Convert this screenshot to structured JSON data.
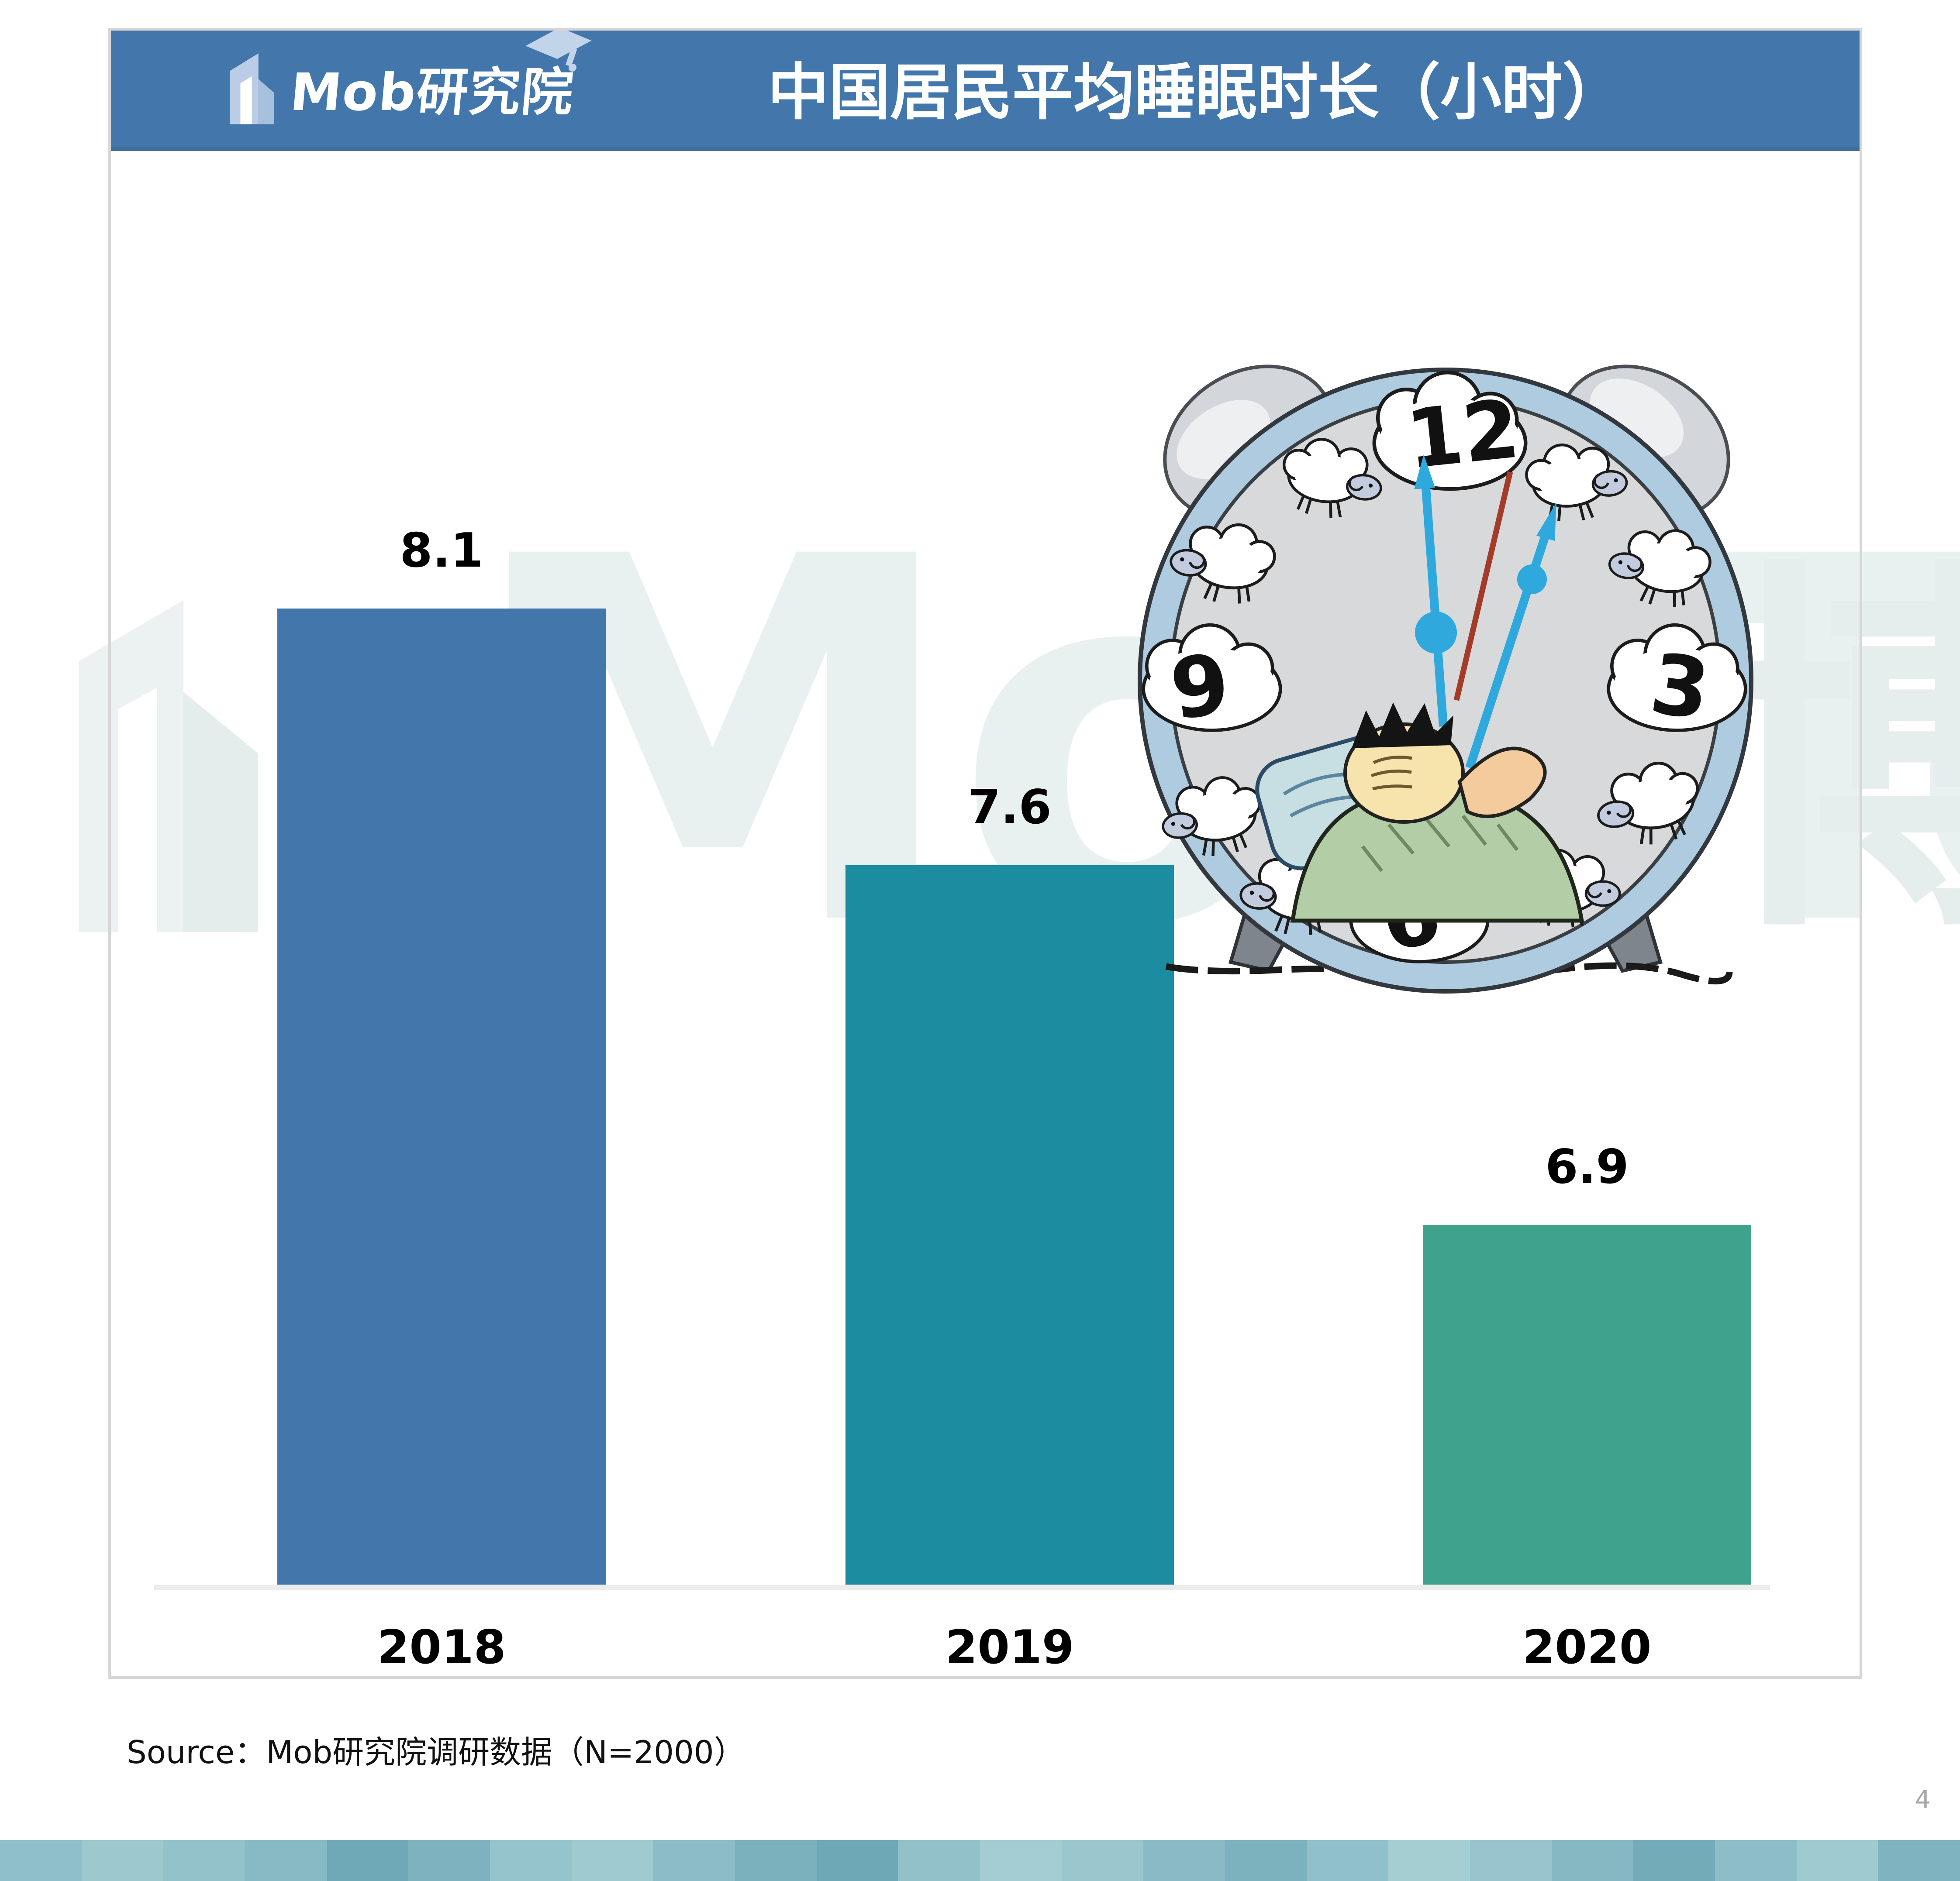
{
  "header": {
    "logo_text": "Mob研究院",
    "title": "中国居民平均睡眠时长（小时）",
    "bg_color": "#4377AC"
  },
  "chart_data": {
    "type": "bar",
    "title": "中国居民平均睡眠时长（小时）",
    "categories": [
      "2018",
      "2019",
      "2020"
    ],
    "values": [
      8.1,
      7.6,
      6.9
    ],
    "value_labels": [
      "8.1",
      "7.6",
      "6.9"
    ],
    "bar_colors": [
      "#4377AC",
      "#1C8CA1",
      "#3EA28D"
    ],
    "xlabel": "",
    "ylabel": "",
    "ylim": [
      6.2,
      8.6
    ],
    "grid": false,
    "legend": false,
    "value_label_color": "#000000",
    "axis_line_color": "#ECECEC"
  },
  "watermark": {
    "text_left": "MobTe",
    "text_right": "博",
    "color": "#E9F1F0"
  },
  "clock": {
    "numbers": [
      "12",
      "3",
      "6",
      "9"
    ]
  },
  "footer": {
    "source": "Source：Mob研究院调研数据（N=2000）",
    "page_number": "4",
    "strip_colors": [
      "#8FBFC9",
      "#9CC8CE",
      "#93C2CA",
      "#88BAC5",
      "#6FA9B8",
      "#7FB2BF",
      "#96C4CC",
      "#9FCAD0",
      "#8CBCC6",
      "#7BB0BD",
      "#6EA7B6",
      "#92C1CA",
      "#A3CDD2",
      "#9AC7CE",
      "#8ABAC5",
      "#7CB1BE",
      "#90C0C9",
      "#A5CED3",
      "#98C5CD",
      "#86B8C3",
      "#74ABB9",
      "#8DBDC7",
      "#9ECAD0",
      "#7FB3BF"
    ]
  }
}
